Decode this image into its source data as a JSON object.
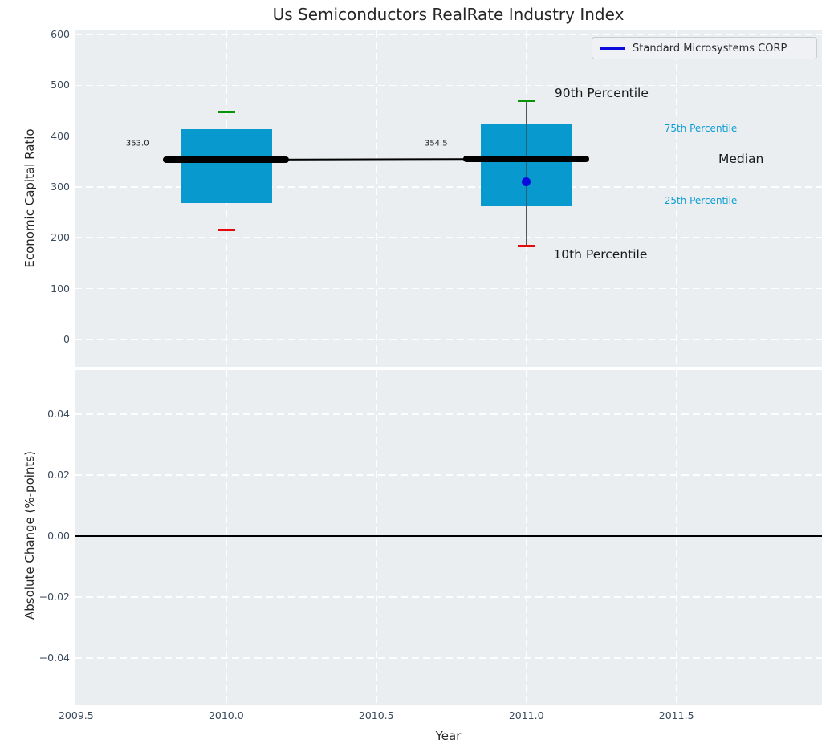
{
  "figure": {
    "title": "Us Semiconductors RealRate Industry Index"
  },
  "legend": {
    "label": "Standard Microsystems CORP"
  },
  "colors": {
    "plot_bg": "#eaeef0",
    "grid": "rgba(255,255,255,0.95)",
    "box_fill": "#0899ce",
    "median": "#000000",
    "whisker": "#7a7a7a",
    "cap_high": "#089408",
    "cap_low": "#e60b0b",
    "company": "#0b0bdd",
    "tick_text": "#3b4a5c",
    "text": "#262626",
    "percentile_label": "#0d9dd6"
  },
  "chart_data": [
    {
      "type": "box",
      "title": "Us Semiconductors RealRate Industry Index",
      "ylabel": "Economic Capital Ratio",
      "xlim": [
        2009.495,
        2011.985
      ],
      "ylim": [
        -54,
        608
      ],
      "grid": true,
      "legend_position": "upper right",
      "yticks": [
        {
          "v": 0,
          "label": "0"
        },
        {
          "v": 100,
          "label": "100"
        },
        {
          "v": 200,
          "label": "200"
        },
        {
          "v": 300,
          "label": "300"
        },
        {
          "v": 400,
          "label": "400"
        },
        {
          "v": 500,
          "label": "500"
        },
        {
          "v": 600,
          "label": "600"
        }
      ],
      "xgrid": [
        2010.0,
        2010.5,
        2011.0,
        2011.5
      ],
      "box_half_width": 0.152,
      "median_half_width": 0.21,
      "boxes": [
        {
          "x": 2010.0,
          "p10": 215,
          "q25": 269,
          "median": 353.0,
          "q75": 413,
          "p90": 448,
          "label": "353.0",
          "label_x": 2009.666,
          "label_y": 385
        },
        {
          "x": 2011.0,
          "p10": 184,
          "q25": 262,
          "median": 354.5,
          "q75": 425,
          "p90": 470,
          "label": "354.5",
          "label_x": 2010.661,
          "label_y": 385
        }
      ],
      "median_trend": {
        "x": [
          2010.0,
          2011.0
        ],
        "y": [
          353.0,
          354.5
        ]
      },
      "series": [
        {
          "name": "Standard Microsystems CORP",
          "marker": "circle",
          "x": [
            2011.0
          ],
          "y": [
            310
          ]
        }
      ],
      "annotations": [
        {
          "text": "90th Percentile",
          "x": 2011.094,
          "y": 485,
          "size": 15.5,
          "color": "#1a1a1a"
        },
        {
          "text": "75th Percentile",
          "x": 2011.46,
          "y": 415,
          "size": 12,
          "color": "#0d9dd6"
        },
        {
          "text": "Median",
          "x": 2011.64,
          "y": 355,
          "size": 15.5,
          "color": "#1a1a1a"
        },
        {
          "text": "25th Percentile",
          "x": 2011.46,
          "y": 273,
          "size": 12,
          "color": "#0d9dd6"
        },
        {
          "text": "10th Percentile",
          "x": 2011.09,
          "y": 167,
          "size": 15.5,
          "color": "#1a1a1a"
        }
      ]
    },
    {
      "type": "line",
      "ylabel": "Absolute Change (%-points)",
      "xlabel": "Year",
      "xlim": [
        2009.495,
        2011.985
      ],
      "ylim": [
        -0.0553,
        0.0545
      ],
      "grid": true,
      "yticks": [
        {
          "v": 0.04,
          "label": "0.04"
        },
        {
          "v": 0.02,
          "label": "0.02"
        },
        {
          "v": 0.0,
          "label": "0.00"
        },
        {
          "v": -0.02,
          "label": "−0.02"
        },
        {
          "v": -0.04,
          "label": "−0.04"
        }
      ],
      "xticks": [
        {
          "v": 2009.5,
          "label": "2009.5"
        },
        {
          "v": 2010.0,
          "label": "2010.0"
        },
        {
          "v": 2010.5,
          "label": "2010.5"
        },
        {
          "v": 2011.0,
          "label": "2011.0"
        },
        {
          "v": 2011.5,
          "label": "2011.5"
        }
      ],
      "xgrid": [
        2010.0,
        2010.5,
        2011.0,
        2011.5
      ],
      "zero_line": 0.0,
      "series": []
    }
  ]
}
